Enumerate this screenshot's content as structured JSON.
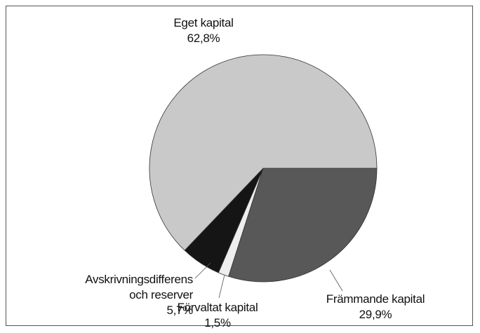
{
  "chart_data": {
    "type": "pie",
    "categories": [
      "Främmande kapital",
      "Förvaltat kapital",
      "Avskrivningsdifferens och reserver",
      "Eget kapital"
    ],
    "values": [
      29.9,
      1.5,
      5.7,
      62.8
    ],
    "value_labels": [
      "29,9%",
      "1,5%",
      "5,7%",
      "62,8%"
    ],
    "colors": [
      "#585858",
      "#eeeeee",
      "#151515",
      "#c9c9c9"
    ],
    "start_angle": 0,
    "direction": "clockwise"
  }
}
